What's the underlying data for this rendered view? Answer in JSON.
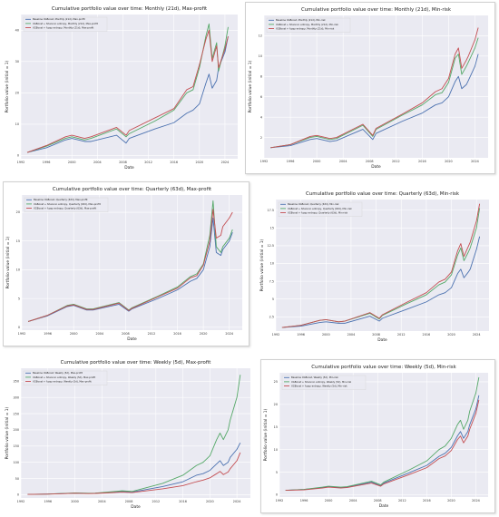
{
  "colors": {
    "plot_bg": "#eaeaf2",
    "grid": "#ffffff",
    "baseline": "#4c72b0",
    "shannon": "#55a868",
    "fuzzy": "#c44e52"
  },
  "chart_data": [
    {
      "type": "line",
      "title": "Cumulative portfolio value over time: Monthly (21d), Max-profit",
      "xlabel": "Date",
      "ylabel": "Portfolio value (initial = 1)",
      "xlim": [
        1992,
        2026
      ],
      "ylim": [
        -1,
        45
      ],
      "x_ticks": [
        1992,
        1996,
        2000,
        2004,
        2008,
        2012,
        2016,
        2020,
        2024
      ],
      "y_ticks": [
        0,
        10,
        20,
        30,
        40
      ],
      "grid": true,
      "legend": "top-left",
      "x": [
        1993,
        1996,
        1999,
        2000,
        2002,
        2003,
        2007,
        2008.5,
        2009,
        2013,
        2016,
        2018,
        2019,
        2020,
        2021,
        2021.5,
        2022,
        2022.7,
        2023,
        2024,
        2024.5
      ],
      "series": [
        {
          "name": "Baseline XGBoost, Monthly (21d), Max-profit",
          "color_key": "baseline",
          "values": [
            1.0,
            2.5,
            5.0,
            5.5,
            4.5,
            4.5,
            6.5,
            4.0,
            5.5,
            8.5,
            10.5,
            13.5,
            14.5,
            16.5,
            23.0,
            26.0,
            21.5,
            24.0,
            28.0,
            33.0,
            38.0
          ]
        },
        {
          "name": "XGBoost + Shannon entropy, Monthly (21d), Max-profit",
          "color_key": "shannon",
          "values": [
            1.0,
            3.0,
            5.5,
            6.0,
            5.0,
            5.5,
            8.5,
            6.0,
            7.0,
            11.0,
            14.5,
            20.0,
            21.0,
            28.0,
            38.0,
            42.0,
            31.0,
            36.0,
            27.0,
            35.0,
            41.0
          ]
        },
        {
          "name": "XGBoost + fuzzy entropy, Monthly (21d), Max-profit",
          "color_key": "fuzzy",
          "values": [
            1.0,
            3.2,
            6.0,
            6.5,
            5.5,
            6.0,
            9.0,
            6.5,
            8.0,
            12.0,
            15.0,
            21.0,
            22.0,
            29.0,
            37.0,
            40.0,
            30.0,
            35.0,
            28.0,
            34.0,
            38.0
          ]
        }
      ]
    },
    {
      "type": "line",
      "title": "Cumulative portfolio value over time: Monthly (21d), Min-risk",
      "xlabel": "Date",
      "ylabel": "Portfolio value (initial = 1)",
      "xlim": [
        1992,
        2026
      ],
      "ylim": [
        0,
        14
      ],
      "x_ticks": [
        1992,
        1996,
        2000,
        2004,
        2008,
        2012,
        2016,
        2020,
        2024
      ],
      "y_ticks": [
        2,
        4,
        6,
        8,
        10,
        12
      ],
      "grid": true,
      "legend": "top-left",
      "x": [
        1993,
        1996,
        1999,
        2000,
        2002,
        2003,
        2007,
        2008.5,
        2009,
        2013,
        2016,
        2018,
        2019,
        2020,
        2021,
        2021.5,
        2022,
        2022.7,
        2023,
        2024,
        2024.5
      ],
      "series": [
        {
          "name": "Baseline XGBoost, Monthly (21d), Min-risk",
          "color_key": "baseline",
          "values": [
            1.0,
            1.2,
            1.8,
            1.9,
            1.6,
            1.7,
            2.8,
            1.8,
            2.4,
            3.6,
            4.4,
            5.2,
            5.4,
            6.0,
            7.5,
            8.0,
            6.8,
            7.2,
            7.6,
            9.0,
            10.2
          ]
        },
        {
          "name": "XGBoost + Shannon entropy, Monthly (21d), Min-risk",
          "color_key": "shannon",
          "values": [
            1.0,
            1.3,
            2.0,
            2.1,
            1.8,
            1.9,
            3.2,
            2.1,
            2.8,
            4.2,
            5.2,
            6.2,
            6.4,
            7.4,
            9.8,
            10.2,
            8.2,
            9.0,
            9.4,
            10.8,
            11.8
          ]
        },
        {
          "name": "XGBoost + fuzzy entropy, Monthly (21d), Min-risk",
          "color_key": "fuzzy",
          "values": [
            1.0,
            1.3,
            2.1,
            2.2,
            1.9,
            2.0,
            3.3,
            2.2,
            2.9,
            4.3,
            5.4,
            6.5,
            6.8,
            7.8,
            10.2,
            10.8,
            8.8,
            9.6,
            10.0,
            11.6,
            12.8
          ]
        }
      ]
    },
    {
      "type": "line",
      "title": "Cumulative portfolio value over time: Quarterly (63d), Max-profit",
      "xlabel": "Date",
      "ylabel": "Portfolio value (initial = 1)",
      "xlim": [
        1992,
        2026
      ],
      "ylim": [
        -0.5,
        23
      ],
      "x_ticks": [
        1992,
        1996,
        2000,
        2004,
        2008,
        2012,
        2016,
        2020,
        2024
      ],
      "y_ticks": [
        0,
        5,
        10,
        15,
        20
      ],
      "grid": true,
      "legend": "top-left",
      "x": [
        1993,
        1996,
        1999,
        2000,
        2002,
        2003,
        2007,
        2008.5,
        2009,
        2013,
        2016,
        2018,
        2019,
        2020,
        2021,
        2021.5,
        2022,
        2022.7,
        2023,
        2024,
        2024.5
      ],
      "series": [
        {
          "name": "Baseline XGBoost, Quarterly (63d), Max-profit",
          "color_key": "baseline",
          "values": [
            1.0,
            2.0,
            3.6,
            3.8,
            3.0,
            3.0,
            4.0,
            2.8,
            3.2,
            5.0,
            6.5,
            8.0,
            8.5,
            10.0,
            14.0,
            19.0,
            13.0,
            12.5,
            13.5,
            15.0,
            16.5
          ]
        },
        {
          "name": "XGBoost + Shannon entropy, Quarterly (63d), Max-profit",
          "color_key": "shannon",
          "values": [
            1.0,
            2.1,
            3.8,
            4.0,
            3.2,
            3.2,
            4.3,
            3.0,
            3.4,
            5.4,
            7.0,
            8.8,
            9.3,
            11.0,
            16.0,
            22.0,
            14.0,
            13.0,
            14.0,
            15.5,
            17.0
          ]
        },
        {
          "name": "XGBoost + fuzzy entropy, Quarterly (63d), Max-profit",
          "color_key": "fuzzy",
          "values": [
            1.0,
            2.1,
            3.7,
            3.9,
            3.1,
            3.1,
            4.2,
            2.9,
            3.3,
            5.3,
            6.8,
            8.6,
            9.0,
            10.8,
            15.0,
            20.5,
            15.5,
            16.0,
            17.5,
            19.0,
            20.0
          ]
        }
      ]
    },
    {
      "type": "line",
      "title": "Cumulative portfolio value over time: Quarterly (63d), Min-risk",
      "xlabel": "Date",
      "ylabel": "Portfolio value (initial = 1)",
      "xlim": [
        1992,
        2026
      ],
      "ylim": [
        0.5,
        19
      ],
      "x_ticks": [
        1992,
        1996,
        2000,
        2004,
        2008,
        2012,
        2016,
        2020,
        2024
      ],
      "y_ticks": [
        2.5,
        5.0,
        7.5,
        10.0,
        12.5,
        15.0,
        17.5
      ],
      "grid": true,
      "legend": "top-left",
      "x": [
        1993,
        1996,
        1999,
        2000,
        2002,
        2003,
        2007,
        2008.5,
        2009,
        2013,
        2016,
        2018,
        2019,
        2020,
        2021,
        2021.5,
        2022,
        2022.7,
        2023,
        2024,
        2024.5
      ],
      "series": [
        {
          "name": "Baseline XGBoost, Quarterly (63d), Min-risk",
          "color_key": "baseline",
          "values": [
            1.0,
            1.2,
            1.7,
            1.8,
            1.6,
            1.6,
            2.6,
            1.9,
            2.3,
            3.6,
            4.6,
            5.6,
            5.9,
            6.6,
            8.6,
            9.2,
            8.0,
            8.8,
            9.2,
            12.0,
            13.8
          ]
        },
        {
          "name": "XGBoost + Shannon entropy, Quarterly (63d), Min-risk",
          "color_key": "shannon",
          "values": [
            1.0,
            1.3,
            2.0,
            2.1,
            1.8,
            1.9,
            3.0,
            2.2,
            2.7,
            4.4,
            5.6,
            7.0,
            7.4,
            8.4,
            11.2,
            12.2,
            10.4,
            11.6,
            12.2,
            15.0,
            17.8
          ]
        },
        {
          "name": "XGBoost + fuzzy entropy, Quarterly (63d), Min-risk",
          "color_key": "fuzzy",
          "values": [
            1.0,
            1.3,
            2.0,
            2.1,
            1.8,
            1.9,
            3.1,
            2.3,
            2.8,
            4.6,
            5.9,
            7.4,
            7.8,
            8.8,
            11.8,
            12.8,
            11.0,
            12.4,
            13.0,
            16.0,
            18.4
          ]
        }
      ]
    },
    {
      "type": "line",
      "title": "Cumulative portfolio value over time: Weekly (5d), Max-profit",
      "xlabel": "Date",
      "ylabel": "Portfolio value (initial = 1)",
      "xlim": [
        1992,
        2026
      ],
      "ylim": [
        -10,
        390
      ],
      "x_ticks": [
        1992,
        1996,
        2000,
        2004,
        2008,
        2012,
        2016,
        2020,
        2024
      ],
      "y_ticks": [
        0,
        50,
        100,
        150,
        200,
        250,
        300,
        350
      ],
      "grid": true,
      "legend": "top-left",
      "x": [
        1993,
        1996,
        1999,
        2000,
        2002,
        2003,
        2007,
        2008.5,
        2009,
        2013,
        2016,
        2018,
        2019,
        2020,
        2021,
        2021.5,
        2022,
        2022.7,
        2023,
        2024,
        2024.5
      ],
      "series": [
        {
          "name": "Baseline XGBoost, Weekly (5d), Max-profit",
          "color_key": "baseline",
          "values": [
            1.0,
            2.0,
            4.0,
            5.0,
            4.0,
            4.5,
            10.0,
            8.0,
            10.0,
            25.0,
            40.0,
            60.0,
            65.0,
            75.0,
            95.0,
            105.0,
            90.0,
            100.0,
            115.0,
            140.0,
            160.0
          ]
        },
        {
          "name": "XGBoost + Shannon entropy, Weekly (5d), Max-profit",
          "color_key": "shannon",
          "values": [
            1.0,
            2.0,
            4.5,
            5.5,
            4.5,
            5.0,
            12.0,
            10.0,
            13.0,
            35.0,
            60.0,
            90.0,
            100.0,
            120.0,
            170.0,
            190.0,
            170.0,
            200.0,
            230.0,
            300.0,
            370.0
          ]
        },
        {
          "name": "XGBoost + fuzzy entropy, Weekly (5d), Max-profit",
          "color_key": "fuzzy",
          "values": [
            1.0,
            1.8,
            3.8,
            4.5,
            3.5,
            4.0,
            8.0,
            6.5,
            8.0,
            18.0,
            28.0,
            40.0,
            45.0,
            52.0,
            65.0,
            72.0,
            62.0,
            70.0,
            80.0,
            105.0,
            130.0
          ]
        }
      ]
    },
    {
      "type": "line",
      "title": "Cumulative portfolio value over time: Weekly (5d), Min-risk",
      "xlabel": "Date",
      "ylabel": "Portfolio value (initial = 1)",
      "xlim": [
        1992,
        2026
      ],
      "ylim": [
        -0.5,
        27
      ],
      "x_ticks": [
        1992,
        1996,
        2000,
        2004,
        2008,
        2012,
        2016,
        2020,
        2024
      ],
      "y_ticks": [
        0,
        5,
        10,
        15,
        20,
        25
      ],
      "grid": true,
      "legend": "top-left",
      "x": [
        1993,
        1996,
        1999,
        2000,
        2002,
        2003,
        2007,
        2008.5,
        2009,
        2013,
        2016,
        2018,
        2019,
        2020,
        2021,
        2021.5,
        2022,
        2022.7,
        2023,
        2024,
        2024.5
      ],
      "series": [
        {
          "name": "Baseline XGBoost, Weekly (5d), Min-risk",
          "color_key": "baseline",
          "values": [
            1.0,
            1.2,
            1.6,
            1.8,
            1.6,
            1.7,
            2.8,
            2.0,
            2.6,
            4.8,
            6.5,
            8.5,
            9.2,
            10.5,
            13.0,
            14.0,
            12.5,
            14.0,
            15.5,
            19.0,
            22.0
          ]
        },
        {
          "name": "XGBoost + Shannon entropy, Weekly (5d), Min-risk",
          "color_key": "shannon",
          "values": [
            1.0,
            1.2,
            1.7,
            1.9,
            1.7,
            1.8,
            3.0,
            2.2,
            2.8,
            5.4,
            7.5,
            10.0,
            10.8,
            12.5,
            15.5,
            16.5,
            14.5,
            16.5,
            18.5,
            22.5,
            26.0
          ]
        },
        {
          "name": "XGBoost + fuzzy entropy, Weekly (5d), Min-risk",
          "color_key": "fuzzy",
          "values": [
            1.0,
            1.1,
            1.5,
            1.7,
            1.5,
            1.6,
            2.6,
            1.9,
            2.4,
            4.4,
            6.0,
            8.0,
            8.6,
            9.8,
            12.2,
            13.0,
            11.5,
            13.0,
            14.5,
            18.0,
            21.0
          ]
        }
      ]
    }
  ]
}
